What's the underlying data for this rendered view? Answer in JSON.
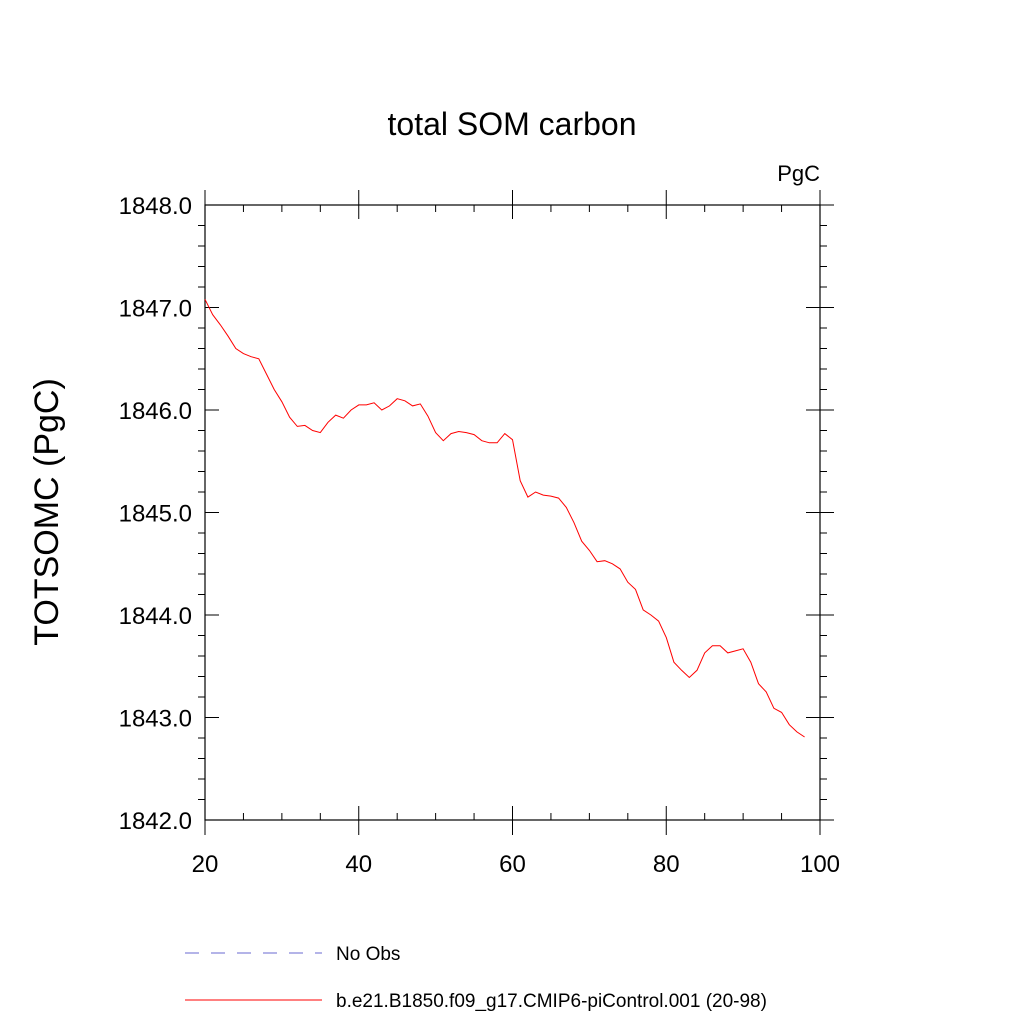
{
  "chart_data": {
    "type": "line",
    "title": "total SOM carbon",
    "units_label": "PgC",
    "ylabel": "TOTSOMC  (PgC)",
    "xlabel": "",
    "xlim": [
      20,
      100
    ],
    "ylim": [
      1842.0,
      1848.0
    ],
    "x_ticks": [
      20,
      40,
      60,
      80,
      100
    ],
    "y_ticks": [
      "1842.0",
      "1843.0",
      "1844.0",
      "1845.0",
      "1846.0",
      "1847.0",
      "1848.0"
    ],
    "grid": false,
    "legend_position": "bottom",
    "legend": [
      {
        "label": "No Obs",
        "color": "#6a6ad0",
        "style": "dashed"
      },
      {
        "label": "b.e21.B1850.f09_g17.CMIP6-piControl.001 (20-98)",
        "color": "#ff0000",
        "style": "solid"
      }
    ],
    "series": [
      {
        "name": "b.e21.B1850.f09_g17.CMIP6-piControl.001 (20-98)",
        "color": "#ff0000",
        "x": [
          20,
          21,
          22,
          23,
          24,
          25,
          26,
          27,
          28,
          29,
          30,
          31,
          32,
          33,
          34,
          35,
          36,
          37,
          38,
          39,
          40,
          41,
          42,
          43,
          44,
          45,
          46,
          47,
          48,
          49,
          50,
          51,
          52,
          53,
          54,
          55,
          56,
          57,
          58,
          59,
          60,
          61,
          62,
          63,
          64,
          65,
          66,
          67,
          68,
          69,
          70,
          71,
          72,
          73,
          74,
          75,
          76,
          77,
          78,
          79,
          80,
          81,
          82,
          83,
          84,
          85,
          86,
          87,
          88,
          89,
          90,
          91,
          92,
          93,
          94,
          95,
          96,
          97,
          98
        ],
        "values": [
          1847.08,
          1846.93,
          1846.83,
          1846.72,
          1846.6,
          1846.55,
          1846.52,
          1846.5,
          1846.35,
          1846.2,
          1846.08,
          1845.93,
          1845.84,
          1845.85,
          1845.8,
          1845.78,
          1845.88,
          1845.95,
          1845.92,
          1846.0,
          1846.05,
          1846.05,
          1846.07,
          1846.0,
          1846.04,
          1846.11,
          1846.09,
          1846.04,
          1846.06,
          1845.94,
          1845.78,
          1845.7,
          1845.77,
          1845.79,
          1845.78,
          1845.76,
          1845.7,
          1845.68,
          1845.68,
          1845.77,
          1845.71,
          1845.31,
          1845.15,
          1845.2,
          1845.17,
          1845.16,
          1845.14,
          1845.05,
          1844.9,
          1844.72,
          1844.63,
          1844.52,
          1844.53,
          1844.5,
          1844.45,
          1844.32,
          1844.25,
          1844.05,
          1844.0,
          1843.94,
          1843.78,
          1843.54,
          1843.46,
          1843.39,
          1843.46,
          1843.63,
          1843.7,
          1843.7,
          1843.63,
          1843.65,
          1843.67,
          1843.54,
          1843.33,
          1843.25,
          1843.09,
          1843.05,
          1842.93,
          1842.86,
          1842.81
        ]
      }
    ]
  }
}
